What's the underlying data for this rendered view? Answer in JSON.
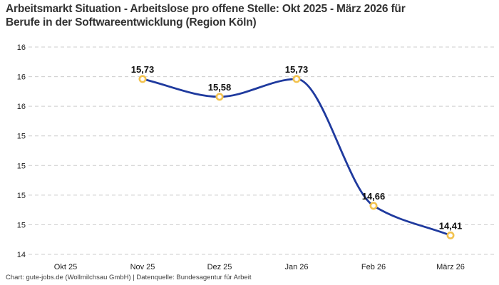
{
  "title": {
    "line1": "Arbeitsmarkt Situation - Arbeitslose pro offene Stelle: Okt 2025 - März 2026 für",
    "line2": "Berufe in der Softwareentwicklung (Region Köln)"
  },
  "footer": "Chart: gute-jobs.de (Wollmilchsau GmbH) | Datenquelle: Bundesagentur für Arbeit",
  "colors": {
    "line": "#1f3a9e",
    "marker_ring": "#f2c24e",
    "marker_fill": "#ffffff",
    "grid": "#cccccc",
    "title_text": "#333333",
    "axis_text": "#222222",
    "point_label_text": "#111111",
    "footer_text": "#3d3d3d"
  },
  "chart_data": {
    "type": "line",
    "title": "Arbeitsmarkt Situation - Arbeitslose pro offene Stelle: Okt 2025 - März 2026 für Berufe in der Softwareentwicklung (Region Köln)",
    "xlabel": "",
    "ylabel": "",
    "categories": [
      "Okt 25",
      "Nov 25",
      "Dez 25",
      "Jan 26",
      "Feb 26",
      "März 26"
    ],
    "series": [
      {
        "name": "Arbeitslose pro offene Stelle",
        "points": [
          {
            "category": "Nov 25",
            "value": 15.73,
            "label": "15,73"
          },
          {
            "category": "Dez 25",
            "value": 15.58,
            "label": "15,58"
          },
          {
            "category": "Jan 26",
            "value": 15.73,
            "label": "15,73"
          },
          {
            "category": "Feb 26",
            "value": 14.66,
            "label": "14,66"
          },
          {
            "category": "März 26",
            "value": 14.41,
            "label": "14,41"
          }
        ]
      }
    ],
    "ylim": [
      14.25,
      16.0
    ],
    "y_ticks": [
      {
        "value": 16.0,
        "label": "16"
      },
      {
        "value": 15.75,
        "label": "16"
      },
      {
        "value": 15.5,
        "label": "16"
      },
      {
        "value": 15.25,
        "label": "15"
      },
      {
        "value": 15.0,
        "label": "15"
      },
      {
        "value": 14.75,
        "label": "15"
      },
      {
        "value": 14.5,
        "label": "15"
      },
      {
        "value": 14.25,
        "label": "14"
      }
    ],
    "grid": "horizontal-dashed",
    "legend_position": "none",
    "curve": "monotone",
    "notes": ""
  }
}
